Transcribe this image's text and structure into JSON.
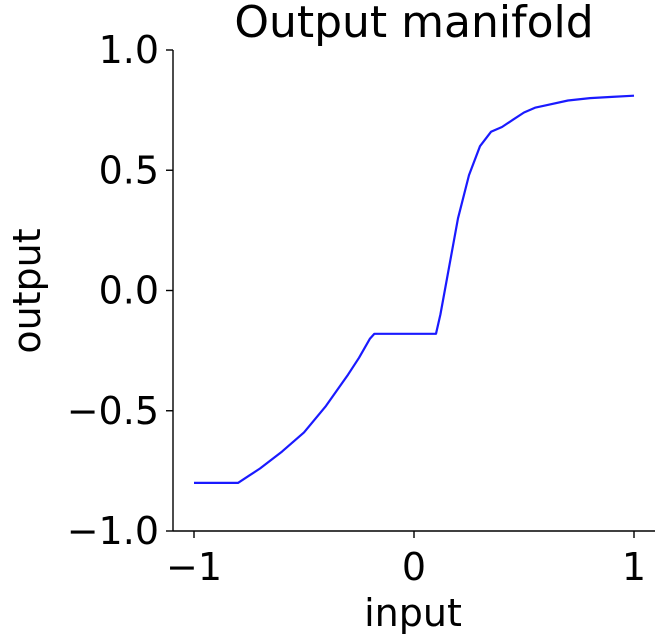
{
  "chart_data": {
    "type": "line",
    "title": "Output manifold",
    "xlabel": "input",
    "ylabel": "output",
    "xlim": [
      -1.1,
      1.1
    ],
    "ylim": [
      -1.0,
      1.0
    ],
    "xticks": [
      {
        "value": -1,
        "label": "−1"
      },
      {
        "value": 0,
        "label": "0"
      },
      {
        "value": 1,
        "label": "1"
      }
    ],
    "yticks": [
      {
        "value": -1.0,
        "label": "−1.0"
      },
      {
        "value": -0.5,
        "label": "−0.5"
      },
      {
        "value": 0.0,
        "label": "0.0"
      },
      {
        "value": 0.5,
        "label": "0.5"
      },
      {
        "value": 1.0,
        "label": "1.0"
      }
    ],
    "grid": false,
    "series": [
      {
        "color": "#1a1aff",
        "x": [
          -1.0,
          -0.9,
          -0.8,
          -0.75,
          -0.7,
          -0.6,
          -0.5,
          -0.4,
          -0.3,
          -0.25,
          -0.2,
          -0.18,
          -0.15,
          0.0,
          0.05,
          0.1,
          0.12,
          0.15,
          0.2,
          0.25,
          0.3,
          0.35,
          0.4,
          0.45,
          0.5,
          0.55,
          0.6,
          0.7,
          0.8,
          0.9,
          1.0
        ],
        "y": [
          -0.8,
          -0.8,
          -0.8,
          -0.77,
          -0.74,
          -0.67,
          -0.59,
          -0.48,
          -0.35,
          -0.28,
          -0.2,
          -0.18,
          -0.18,
          -0.18,
          -0.18,
          -0.18,
          -0.1,
          0.05,
          0.3,
          0.48,
          0.6,
          0.66,
          0.68,
          0.71,
          0.74,
          0.76,
          0.77,
          0.79,
          0.8,
          0.805,
          0.81
        ]
      }
    ]
  }
}
